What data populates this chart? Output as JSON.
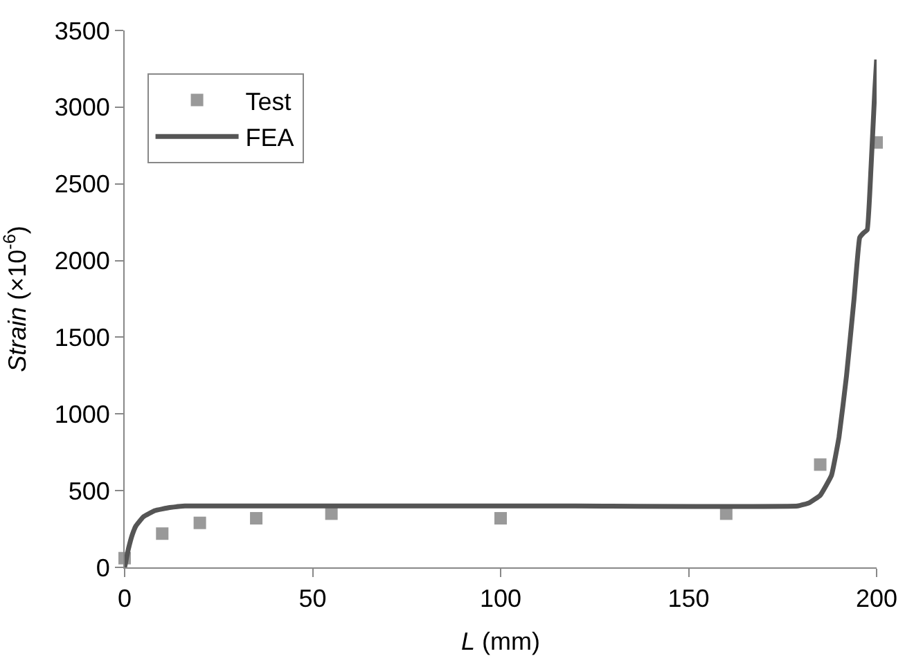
{
  "chart_data": {
    "type": "scatter",
    "xlabel": "L (mm)",
    "ylabel": "Strain (×10$^{-6}$)",
    "xlim": [
      0,
      200
    ],
    "xticks": [
      0,
      50,
      100,
      150,
      200
    ],
    "ylim": [
      0,
      3500
    ],
    "yticks": [
      0,
      500,
      1000,
      1500,
      2000,
      2500,
      3000,
      3500
    ],
    "legend": "top left",
    "series": [
      {
        "name": "Test",
        "marker": "square",
        "color": "#999999",
        "x": [
          0,
          10,
          20,
          35,
          55,
          100,
          160,
          185,
          200
        ],
        "values": [
          60,
          220,
          290,
          320,
          350,
          320,
          350,
          670,
          2770
        ]
      },
      {
        "name": "FEA",
        "type": "line",
        "marker": "none",
        "line_style": "solid",
        "color": "#555555",
        "x": [
          0,
          1,
          2,
          3,
          5,
          8,
          12,
          16,
          20,
          60,
          120,
          179,
          182,
          185,
          188,
          190,
          192,
          194,
          195.5,
          196.5,
          197.5,
          198.5,
          199.5,
          200
        ],
        "values": [
          0,
          120,
          210,
          270,
          330,
          370,
          390,
          400,
          400,
          400,
          400,
          400,
          420,
          470,
          600,
          850,
          1250,
          1750,
          2150,
          2180,
          2200,
          2600,
          3100,
          3310
        ]
      }
    ]
  }
}
